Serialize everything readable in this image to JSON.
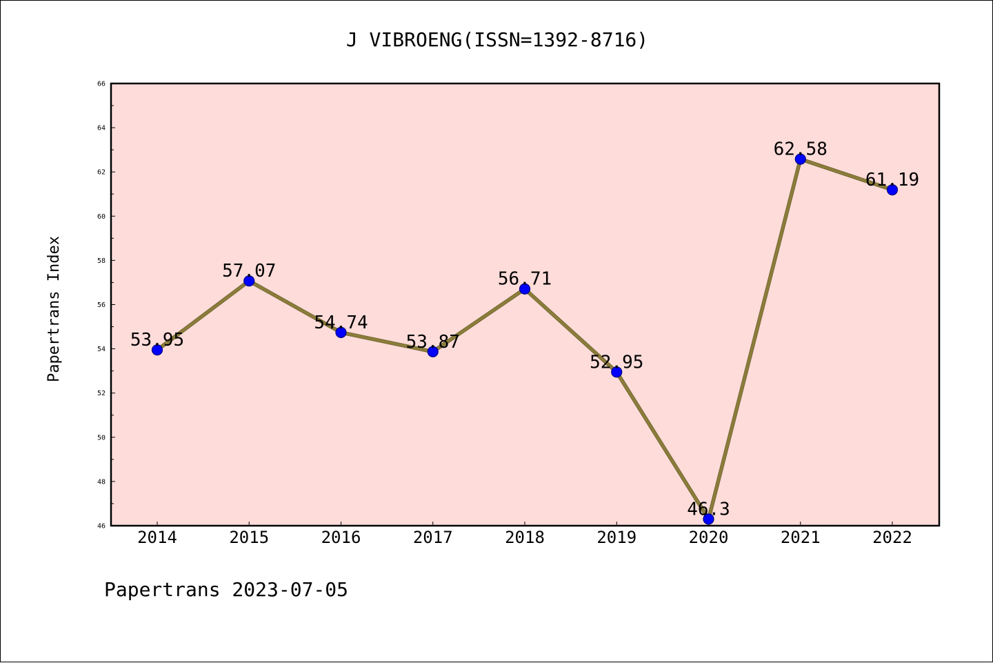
{
  "chart_data": {
    "type": "line",
    "title": "J VIBROENG(ISSN=1392-8716)",
    "xlabel": "",
    "ylabel": "Papertrans Index",
    "footer": "Papertrans 2023-07-05",
    "categories": [
      "2014",
      "2015",
      "2016",
      "2017",
      "2018",
      "2019",
      "2020",
      "2021",
      "2022"
    ],
    "values": [
      53.95,
      57.07,
      54.74,
      53.87,
      56.71,
      52.95,
      46.3,
      62.58,
      61.19
    ],
    "value_labels": [
      "53.95",
      "57.07",
      "54.74",
      "53.87",
      "56.71",
      "52.95",
      "46.3",
      "62.58",
      "61.19"
    ],
    "ylim": [
      46,
      66
    ],
    "yticks": [
      46,
      48,
      50,
      52,
      54,
      56,
      58,
      60,
      62,
      64,
      66
    ],
    "ytick_labels": [
      "46",
      "48",
      "50",
      "52",
      "54",
      "56",
      "58",
      "60",
      "62",
      "64",
      "66"
    ],
    "grid": false,
    "colors": {
      "plot_background": "#fddcda",
      "line": "#8b7d3a",
      "marker": "#0000ff",
      "marker_edge": "#000080"
    }
  }
}
